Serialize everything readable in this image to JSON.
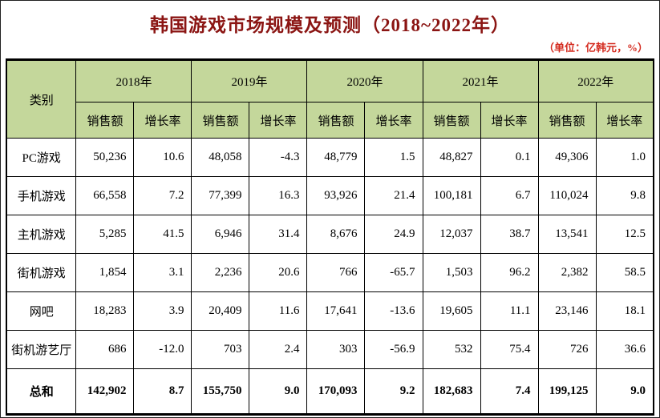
{
  "page": {
    "title": "韩国游戏市场规模及预测（2018~2022年）",
    "unit_note": "（单位：亿韩元，%）"
  },
  "colors": {
    "title_text": "#8b1513",
    "unit_text": "#d42a1e",
    "header_bg": "#c4d79b",
    "grid_border": "#000000"
  },
  "table": {
    "category_header": "类别",
    "years": [
      "2018年",
      "2019年",
      "2020年",
      "2021年",
      "2022年"
    ],
    "sub_headers": [
      "销售额",
      "增长率"
    ],
    "rows": [
      {
        "category": "PC游戏",
        "values": [
          "50,236",
          "10.6",
          "48,058",
          "-4.3",
          "48,779",
          "1.5",
          "48,827",
          "0.1",
          "49,306",
          "1.0"
        ]
      },
      {
        "category": "手机游戏",
        "values": [
          "66,558",
          "7.2",
          "77,399",
          "16.3",
          "93,926",
          "21.4",
          "100,181",
          "6.7",
          "110,024",
          "9.8"
        ]
      },
      {
        "category": "主机游戏",
        "values": [
          "5,285",
          "41.5",
          "6,946",
          "31.4",
          "8,676",
          "24.9",
          "12,037",
          "38.7",
          "13,541",
          "12.5"
        ]
      },
      {
        "category": "街机游戏",
        "values": [
          "1,854",
          "3.1",
          "2,236",
          "20.6",
          "766",
          "-65.7",
          "1,503",
          "96.2",
          "2,382",
          "58.5"
        ]
      },
      {
        "category": "网吧",
        "values": [
          "18,283",
          "3.9",
          "20,409",
          "11.6",
          "17,641",
          "-13.6",
          "19,605",
          "11.1",
          "23,146",
          "18.1"
        ]
      },
      {
        "category": "街机游艺厅",
        "values": [
          "686",
          "-12.0",
          "703",
          "2.4",
          "303",
          "-56.9",
          "532",
          "75.4",
          "726",
          "36.6"
        ]
      }
    ],
    "total": {
      "category": "总和",
      "values": [
        "142,902",
        "8.7",
        "155,750",
        "9.0",
        "170,093",
        "9.2",
        "182,683",
        "7.4",
        "199,125",
        "9.0"
      ]
    }
  },
  "chart_data": {
    "type": "table",
    "title": "韩国游戏市场规模及预测（2018~2022年）",
    "unit": "亿韩元，%",
    "years": [
      "2018",
      "2019",
      "2020",
      "2021",
      "2022"
    ],
    "metrics": [
      "销售额",
      "增长率"
    ],
    "rows": [
      {
        "category": "PC游戏",
        "sales": [
          50236,
          48058,
          48779,
          48827,
          49306
        ],
        "growth": [
          10.6,
          -4.3,
          1.5,
          0.1,
          1.0
        ]
      },
      {
        "category": "手机游戏",
        "sales": [
          66558,
          77399,
          93926,
          100181,
          110024
        ],
        "growth": [
          7.2,
          16.3,
          21.4,
          6.7,
          9.8
        ]
      },
      {
        "category": "主机游戏",
        "sales": [
          5285,
          6946,
          8676,
          12037,
          13541
        ],
        "growth": [
          41.5,
          31.4,
          24.9,
          38.7,
          12.5
        ]
      },
      {
        "category": "街机游戏",
        "sales": [
          1854,
          2236,
          766,
          1503,
          2382
        ],
        "growth": [
          3.1,
          20.6,
          -65.7,
          96.2,
          58.5
        ]
      },
      {
        "category": "网吧",
        "sales": [
          18283,
          20409,
          17641,
          19605,
          23146
        ],
        "growth": [
          3.9,
          11.6,
          -13.6,
          11.1,
          18.1
        ]
      },
      {
        "category": "街机游艺厅",
        "sales": [
          686,
          703,
          303,
          532,
          726
        ],
        "growth": [
          -12.0,
          2.4,
          -56.9,
          75.4,
          36.6
        ]
      },
      {
        "category": "总和",
        "sales": [
          142902,
          155750,
          170093,
          182683,
          199125
        ],
        "growth": [
          8.7,
          9.0,
          9.2,
          7.4,
          9.0
        ]
      }
    ]
  }
}
